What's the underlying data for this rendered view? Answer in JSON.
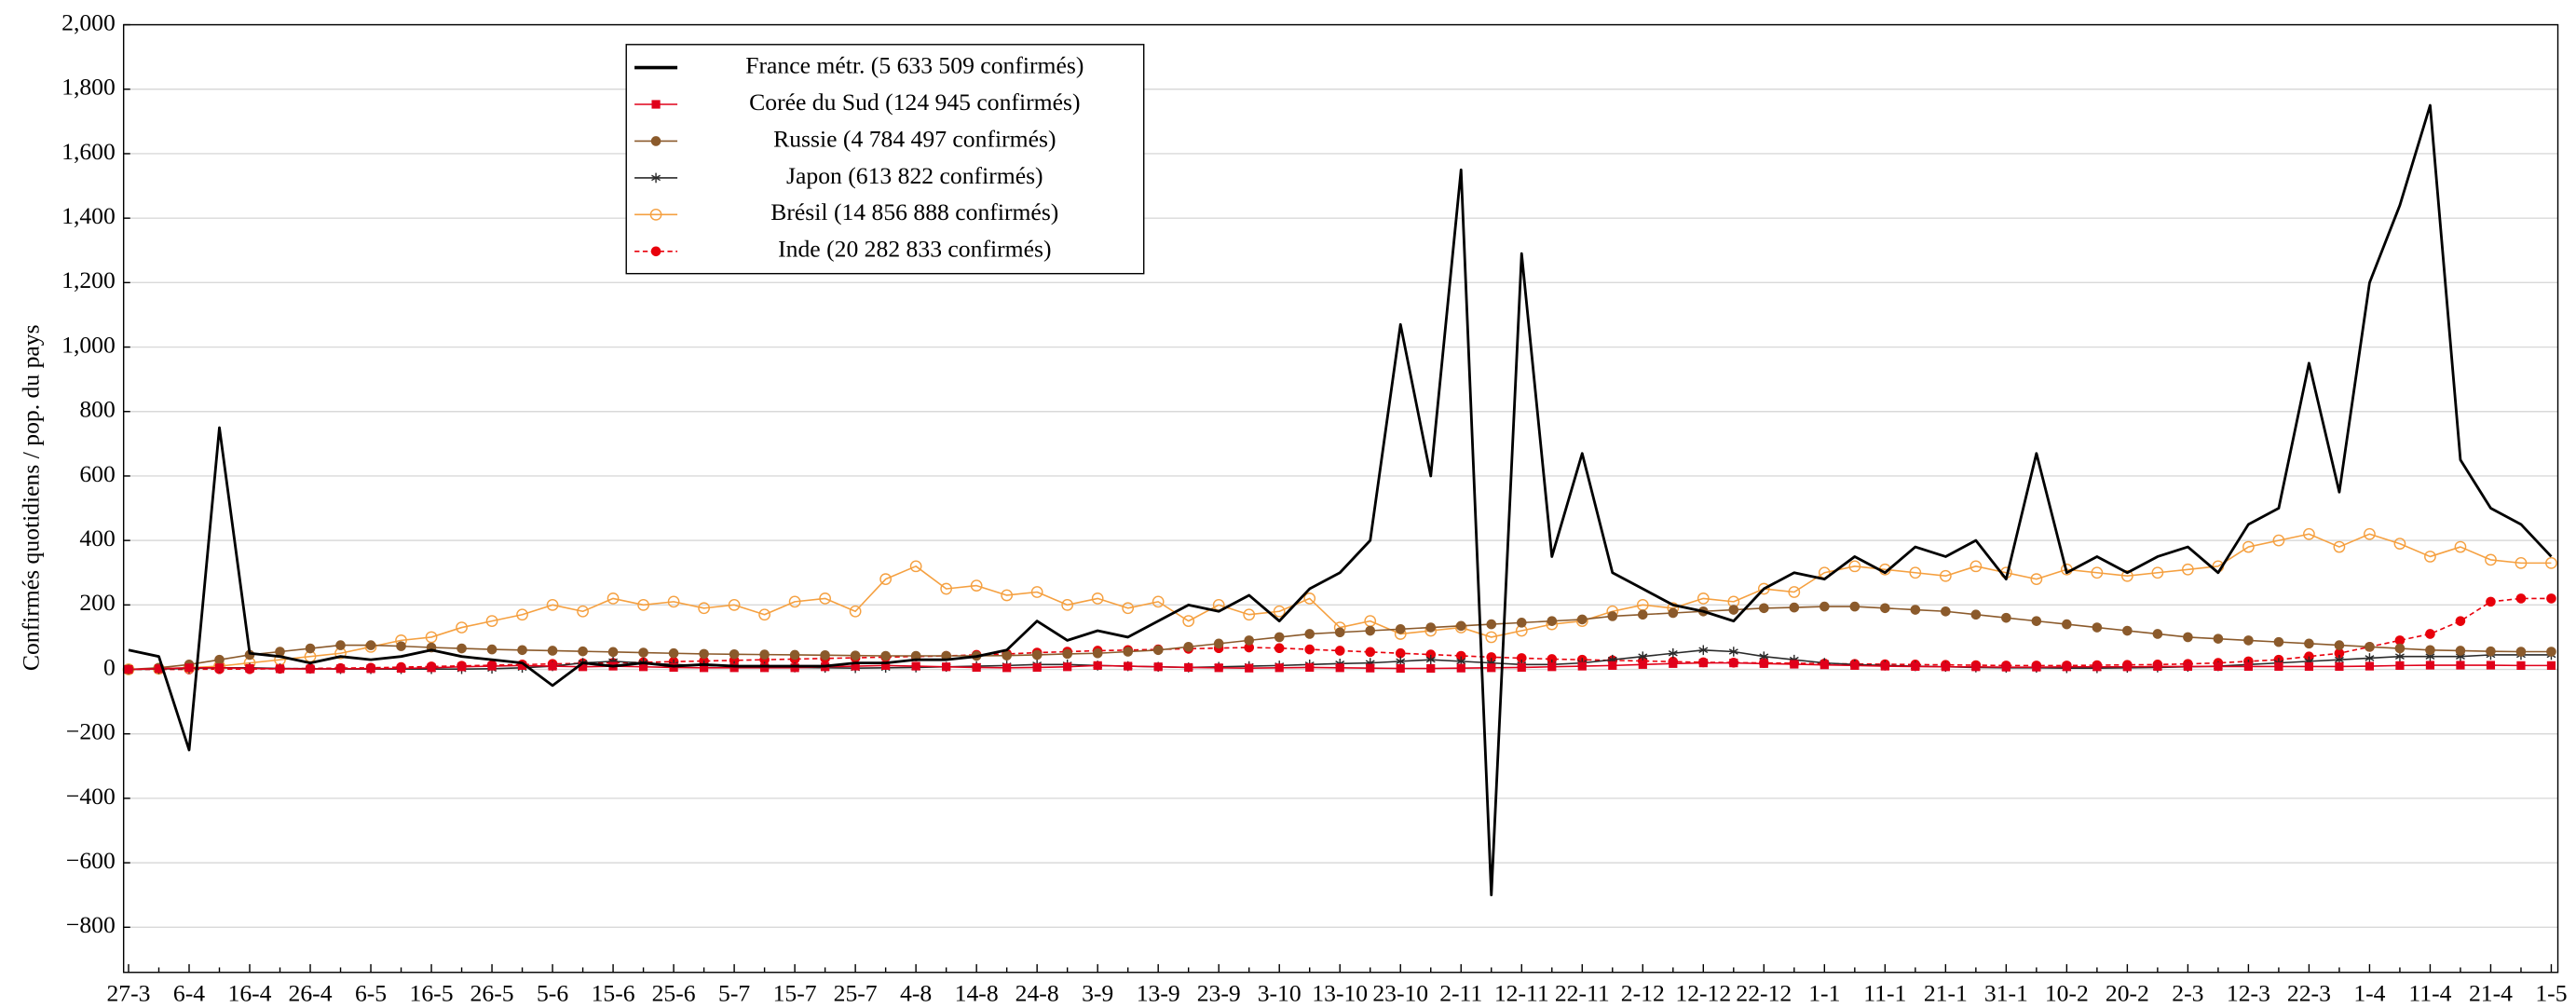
{
  "chart_data": {
    "type": "line",
    "ylabel": "Confirmés quotidiens / pop. du pays",
    "categories": [
      "27-3",
      null,
      "6-4",
      null,
      "16-4",
      null,
      "26-4",
      null,
      "6-5",
      null,
      "16-5",
      null,
      "26-5",
      null,
      "5-6",
      null,
      "15-6",
      null,
      "25-6",
      null,
      "5-7",
      null,
      "15-7",
      null,
      "25-7",
      null,
      "4-8",
      null,
      "14-8",
      null,
      "24-8",
      null,
      "3-9",
      null,
      "13-9",
      null,
      "23-9",
      null,
      "3-10",
      null,
      "13-10",
      null,
      "23-10",
      null,
      "2-11",
      null,
      "12-11",
      null,
      "22-11",
      null,
      "2-12",
      null,
      "12-12",
      null,
      "22-12",
      null,
      "1-1",
      null,
      "11-1",
      null,
      "21-1",
      null,
      "31-1",
      null,
      "10-2",
      null,
      "20-2",
      null,
      "2-3",
      null,
      "12-3",
      null,
      "22-3",
      null,
      "1-4",
      null,
      "11-4",
      null,
      "21-4",
      null,
      "1-5"
    ],
    "ylim": [
      -940,
      2000
    ],
    "yticks": [
      {
        "value": -800,
        "label": "−800"
      },
      {
        "value": -600,
        "label": "−600"
      },
      {
        "value": -400,
        "label": "−400"
      },
      {
        "value": -200,
        "label": "−200"
      },
      0,
      200,
      400,
      600,
      800,
      {
        "value": 1000,
        "label": "1,000"
      },
      {
        "value": 1200,
        "label": "1,200"
      },
      {
        "value": 1400,
        "label": "1,400"
      },
      {
        "value": 1600,
        "label": "1,600"
      },
      {
        "value": 1800,
        "label": "1,800"
      },
      {
        "value": 2000,
        "label": "2,000"
      }
    ],
    "grid": true,
    "legend": "upper left",
    "series": [
      {
        "name": "France métr. (5 633 509 confirmés)",
        "color": "#000000",
        "marker": "none",
        "dashed": false,
        "values": [
          60,
          40,
          -250,
          750,
          50,
          40,
          20,
          40,
          30,
          40,
          60,
          40,
          30,
          20,
          -50,
          20,
          10,
          20,
          10,
          15,
          10,
          10,
          10,
          10,
          20,
          20,
          30,
          30,
          40,
          60,
          150,
          90,
          120,
          100,
          150,
          200,
          180,
          230,
          150,
          250,
          300,
          400,
          1070,
          600,
          1550,
          -700,
          1290,
          350,
          670,
          300,
          250,
          200,
          180,
          150,
          250,
          300,
          280,
          350,
          300,
          380,
          350,
          400,
          280,
          670,
          300,
          350,
          300,
          350,
          380,
          300,
          450,
          500,
          950,
          550,
          1200,
          1440,
          1750,
          650,
          500,
          450,
          350
        ]
      },
      {
        "name": "Corée du Sud (124 945 confirmés)",
        "color": "#e0001a",
        "marker": "square",
        "dashed": false,
        "values": [
          0,
          2,
          5,
          5,
          3,
          2,
          1,
          2,
          2,
          3,
          5,
          8,
          10,
          12,
          10,
          8,
          10,
          8,
          6,
          5,
          5,
          5,
          5,
          8,
          10,
          12,
          10,
          8,
          6,
          5,
          6,
          8,
          12,
          10,
          8,
          6,
          5,
          4,
          5,
          6,
          5,
          4,
          3,
          3,
          4,
          5,
          6,
          8,
          10,
          12,
          15,
          18,
          20,
          20,
          18,
          16,
          14,
          12,
          10,
          9,
          8,
          8,
          7,
          7,
          8,
          8,
          8,
          9,
          9,
          9,
          9,
          9,
          9,
          9,
          10,
          12,
          13,
          13,
          13,
          12,
          12
        ]
      },
      {
        "name": "Russie (4 784 497 confirmés)",
        "color": "#8b5a2b",
        "marker": "circle",
        "dashed": false,
        "values": [
          0,
          5,
          15,
          30,
          45,
          55,
          65,
          75,
          75,
          72,
          68,
          65,
          62,
          60,
          58,
          56,
          54,
          52,
          50,
          48,
          47,
          46,
          45,
          44,
          43,
          42,
          42,
          42,
          42,
          43,
          45,
          48,
          50,
          55,
          60,
          70,
          80,
          90,
          100,
          110,
          115,
          120,
          125,
          130,
          135,
          140,
          145,
          150,
          155,
          165,
          170,
          175,
          180,
          185,
          190,
          192,
          195,
          195,
          190,
          185,
          180,
          170,
          160,
          150,
          140,
          130,
          120,
          110,
          100,
          95,
          90,
          85,
          80,
          75,
          70,
          65,
          60,
          58,
          56,
          55,
          55
        ]
      },
      {
        "name": "Japon (613 822 confirmés)",
        "color": "#2a2a2a",
        "marker": "star",
        "dashed": false,
        "values": [
          0,
          1,
          3,
          5,
          5,
          3,
          2,
          1,
          1,
          1,
          1,
          1,
          2,
          5,
          10,
          20,
          25,
          20,
          15,
          12,
          10,
          8,
          6,
          5,
          4,
          5,
          6,
          8,
          10,
          12,
          15,
          15,
          12,
          10,
          8,
          6,
          8,
          10,
          12,
          15,
          18,
          20,
          25,
          30,
          25,
          20,
          15,
          15,
          20,
          30,
          40,
          50,
          60,
          55,
          40,
          30,
          20,
          15,
          12,
          10,
          8,
          6,
          5,
          5,
          4,
          4,
          5,
          6,
          8,
          10,
          15,
          20,
          25,
          30,
          35,
          40,
          40,
          40,
          45,
          45,
          45
        ]
      },
      {
        "name": "Brésil (14 856 888 confirmés)",
        "color": "#f5a040",
        "marker": "open-circle",
        "dashed": false,
        "values": [
          0,
          2,
          5,
          10,
          20,
          30,
          40,
          50,
          70,
          90,
          100,
          130,
          150,
          170,
          200,
          180,
          220,
          200,
          210,
          190,
          200,
          170,
          210,
          220,
          180,
          280,
          320,
          250,
          260,
          230,
          240,
          200,
          220,
          190,
          210,
          150,
          200,
          170,
          180,
          220,
          130,
          150,
          110,
          120,
          130,
          100,
          120,
          140,
          150,
          180,
          200,
          190,
          220,
          210,
          250,
          240,
          300,
          320,
          310,
          300,
          290,
          320,
          300,
          280,
          310,
          300,
          290,
          300,
          310,
          320,
          380,
          400,
          420,
          380,
          420,
          390,
          350,
          380,
          340,
          330,
          330
        ]
      },
      {
        "name": "Inde (20 282 833 confirmés)",
        "color": "#e8000b",
        "marker": "circle",
        "dashed": true,
        "values": [
          0,
          0,
          0,
          1,
          1,
          2,
          3,
          4,
          5,
          7,
          9,
          11,
          13,
          15,
          17,
          19,
          20,
          22,
          24,
          26,
          28,
          30,
          32,
          34,
          36,
          38,
          40,
          42,
          45,
          48,
          52,
          55,
          58,
          60,
          62,
          64,
          66,
          68,
          66,
          62,
          58,
          54,
          50,
          46,
          42,
          38,
          35,
          32,
          30,
          28,
          26,
          24,
          22,
          21,
          20,
          19,
          18,
          17,
          16,
          15,
          14,
          13,
          12,
          12,
          12,
          13,
          14,
          15,
          17,
          20,
          25,
          30,
          40,
          50,
          70,
          90,
          110,
          150,
          210,
          220,
          220
        ]
      }
    ]
  }
}
